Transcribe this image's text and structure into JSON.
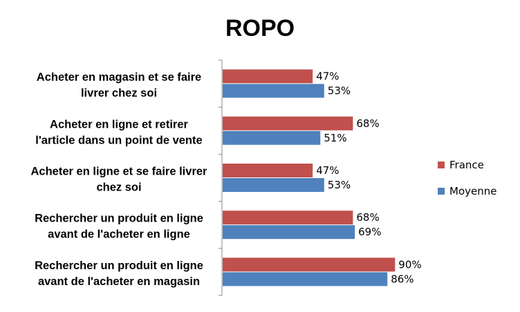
{
  "chart_data": {
    "type": "bar",
    "orientation": "horizontal",
    "title": "ROPO",
    "categories": [
      [
        "Acheter en magasin et se faire",
        "livrer chez soi"
      ],
      [
        "Acheter en ligne et retirer",
        "l'article dans un point de vente"
      ],
      [
        "Acheter en ligne et se faire livrer",
        "chez soi"
      ],
      [
        "Rechercher un produit en ligne",
        "avant de l'acheter en ligne"
      ],
      [
        "Rechercher un produit en ligne",
        "avant de l'acheter en magasin"
      ]
    ],
    "series": [
      {
        "name": "France",
        "color": "#c0504d",
        "values": [
          47,
          68,
          47,
          68,
          90
        ],
        "labels": [
          "47%",
          "68%",
          "47%",
          "68%",
          "90%"
        ]
      },
      {
        "name": "Moyenne",
        "color": "#4f81bd",
        "values": [
          53,
          51,
          53,
          69,
          86
        ],
        "labels": [
          "53%",
          "51%",
          "53%",
          "69%",
          "86%"
        ]
      }
    ],
    "xlim": [
      0,
      100
    ],
    "legend_position": "right",
    "grid": false
  }
}
